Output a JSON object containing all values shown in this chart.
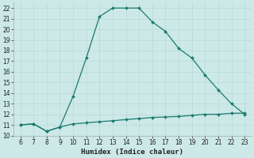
{
  "xlabel": "Humidex (Indice chaleur)",
  "x_values": [
    6,
    7,
    8,
    9,
    10,
    11,
    12,
    13,
    14,
    15,
    16,
    17,
    18,
    19,
    20,
    21,
    22,
    23
  ],
  "y1_values": [
    11,
    11.1,
    10.4,
    10.8,
    13.7,
    17.3,
    21.2,
    22,
    22,
    22,
    20.7,
    19.8,
    18.2,
    17.3,
    15.7,
    14.3,
    13.0,
    12.0
  ],
  "y2_values": [
    11,
    11.1,
    10.4,
    10.8,
    11.1,
    11.2,
    11.3,
    11.4,
    11.5,
    11.6,
    11.7,
    11.75,
    11.8,
    11.9,
    12.0,
    12.0,
    12.1,
    12.1
  ],
  "xlim": [
    5.5,
    23.5
  ],
  "ylim": [
    10,
    22.5
  ],
  "yticks": [
    10,
    11,
    12,
    13,
    14,
    15,
    16,
    17,
    18,
    19,
    20,
    21,
    22
  ],
  "xticks": [
    6,
    7,
    8,
    9,
    10,
    11,
    12,
    13,
    14,
    15,
    16,
    17,
    18,
    19,
    20,
    21,
    22,
    23
  ],
  "line_color": "#1a7a6e",
  "bg_color": "#cce9e7",
  "grid_color_major": "#b8d8d5",
  "grid_color_minor": "#daecea",
  "tick_fontsize": 5.5,
  "label_fontsize": 6.5
}
